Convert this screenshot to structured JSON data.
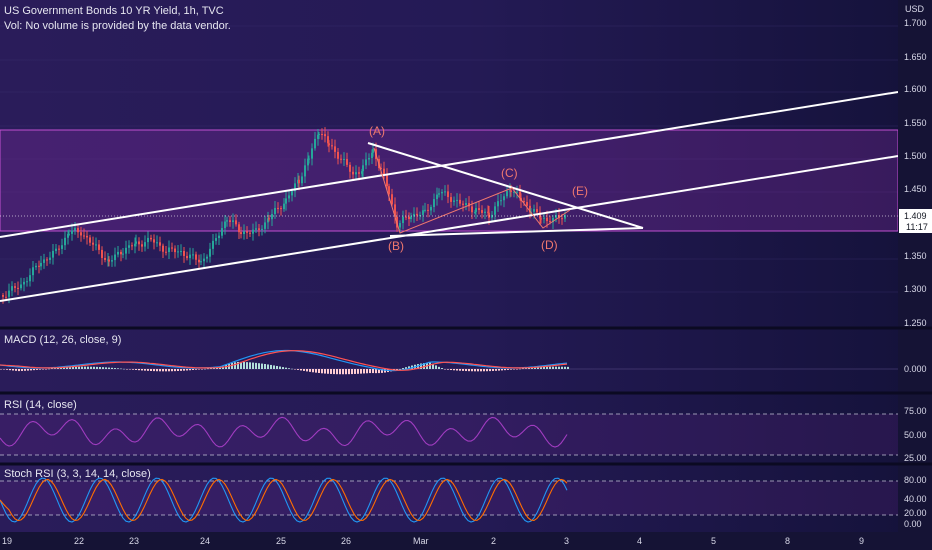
{
  "header": {
    "title": "US Government Bonds 10 YR Yield, 1h, TVC",
    "subtitle": "Vol: No volume is provided by the data vendor."
  },
  "currency": "USD",
  "colors": {
    "up": "#26a69a",
    "down": "#ef5350",
    "trendline": "#ffffff",
    "zone": "#c04fd0",
    "wave_label": "#f0786e",
    "macd_line": "#2196f3",
    "signal_line": "#ff5252",
    "rsi_line": "#a03cc0",
    "stoch_k": "#2196f3",
    "stoch_d": "#ff6d00"
  },
  "price_scale": {
    "ticks": [
      "1.700",
      "1.650",
      "1.600",
      "1.550",
      "1.500",
      "1.450",
      "1.350",
      "1.300",
      "1.250"
    ],
    "current_price": "1.409",
    "countdown": "11:17"
  },
  "time_axis": [
    "19",
    "22",
    "23",
    "24",
    "25",
    "26",
    "Mar",
    "2",
    "3",
    "4",
    "5",
    "8",
    "9"
  ],
  "wave_labels": [
    "(A)",
    "(B)",
    "(C)",
    "(D)",
    "(E)"
  ],
  "macd": {
    "title": "MACD (12, 26, close, 9)",
    "ticks": [
      "0.000"
    ]
  },
  "rsi": {
    "title": "RSI (14, close)",
    "ticks": [
      "75.00",
      "50.00",
      "25.00"
    ]
  },
  "stoch": {
    "title": "Stoch RSI (3, 3, 14, 14, close)",
    "ticks": [
      "80.00",
      "40.00",
      "20.00",
      "0.00"
    ]
  },
  "chart_data": {
    "type": "candlestick",
    "title": "US Government Bonds 10 YR Yield, 1h, TVC",
    "ylim": [
      1.25,
      1.72
    ],
    "xrange": [
      "Feb 19",
      "Mar 9"
    ],
    "trendlines": [
      {
        "name": "channel-upper",
        "points": [
          [
            "Feb 19",
            1.38
          ],
          [
            "Mar 9",
            1.595
          ]
        ]
      },
      {
        "name": "channel-lower",
        "points": [
          [
            "Feb 19",
            1.275
          ],
          [
            "Mar 9",
            1.5
          ]
        ]
      },
      {
        "name": "triangle-upper",
        "points": [
          [
            "Feb 26",
            1.52
          ],
          [
            "Mar 4",
            1.39
          ]
        ]
      },
      {
        "name": "triangle-lower",
        "points": [
          [
            "Feb 26",
            1.375
          ],
          [
            "Mar 4",
            1.39
          ]
        ]
      }
    ],
    "zone": {
      "from": 1.387,
      "to": 1.535
    },
    "waves": [
      {
        "label": "(A)",
        "value": 1.52
      },
      {
        "label": "(B)",
        "value": 1.375
      },
      {
        "label": "(C)",
        "value": 1.45
      },
      {
        "label": "(D)",
        "value": 1.39
      },
      {
        "label": "(E)",
        "value": 1.42
      }
    ],
    "last_price": 1.409
  }
}
